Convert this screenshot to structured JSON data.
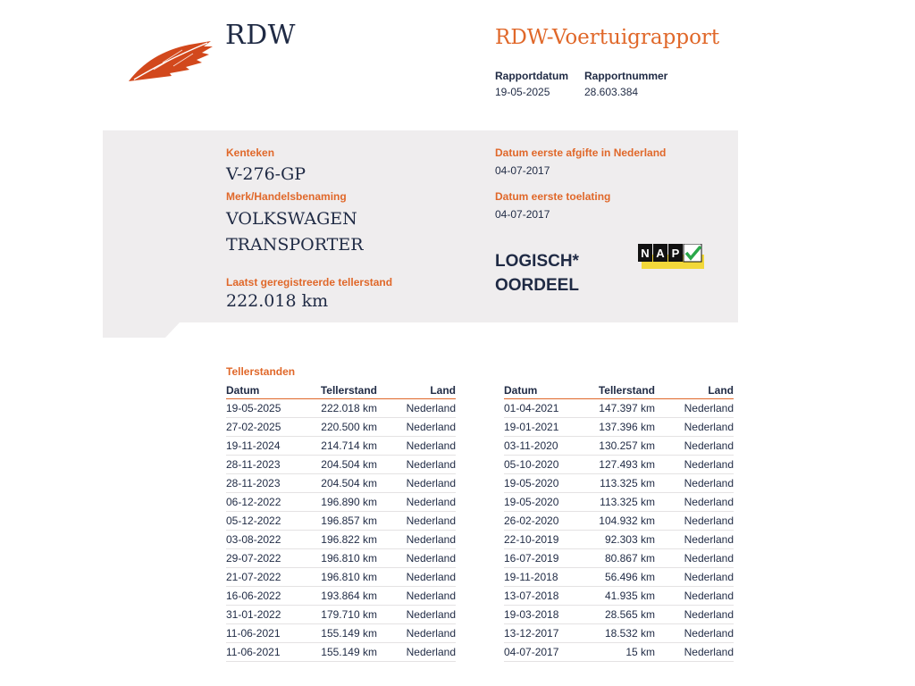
{
  "header": {
    "brand": "RDW",
    "report_title": "RDW-Voertuigrapport",
    "report_date_label": "Rapportdatum",
    "report_date": "19-05-2025",
    "report_number_label": "Rapportnummer",
    "report_number": "28.603.384"
  },
  "vehicle": {
    "plate_label": "Kenteken",
    "plate": "V-276-GP",
    "make_label": "Merk/Handelsbenaming",
    "make": "VOLKSWAGEN",
    "model": "TRANSPORTER",
    "odometer_label": "Laatst geregistreerde tellerstand",
    "odometer": "222.018 km",
    "first_issue_nl_label": "Datum eerste afgifte in Nederland",
    "first_issue_nl": "04-07-2017",
    "first_admission_label": "Datum eerste toelating",
    "first_admission": "04-07-2017",
    "verdict_line1": "LOGISCH*",
    "verdict_line2": "OORDEEL",
    "nap_letters": [
      "N",
      "A",
      "P"
    ]
  },
  "readings": {
    "section_title": "Tellerstanden",
    "columns": [
      "Datum",
      "Tellerstand",
      "Land"
    ],
    "left": [
      [
        "19-05-2025",
        "222.018 km",
        "Nederland"
      ],
      [
        "27-02-2025",
        "220.500 km",
        "Nederland"
      ],
      [
        "19-11-2024",
        "214.714 km",
        "Nederland"
      ],
      [
        "28-11-2023",
        "204.504 km",
        "Nederland"
      ],
      [
        "28-11-2023",
        "204.504 km",
        "Nederland"
      ],
      [
        "06-12-2022",
        "196.890 km",
        "Nederland"
      ],
      [
        "05-12-2022",
        "196.857 km",
        "Nederland"
      ],
      [
        "03-08-2022",
        "196.822 km",
        "Nederland"
      ],
      [
        "29-07-2022",
        "196.810 km",
        "Nederland"
      ],
      [
        "21-07-2022",
        "196.810 km",
        "Nederland"
      ],
      [
        "16-06-2022",
        "193.864 km",
        "Nederland"
      ],
      [
        "31-01-2022",
        "179.710 km",
        "Nederland"
      ],
      [
        "11-06-2021",
        "155.149 km",
        "Nederland"
      ],
      [
        "11-06-2021",
        "155.149 km",
        "Nederland"
      ]
    ],
    "right": [
      [
        "01-04-2021",
        "147.397 km",
        "Nederland"
      ],
      [
        "19-01-2021",
        "137.396 km",
        "Nederland"
      ],
      [
        "03-11-2020",
        "130.257 km",
        "Nederland"
      ],
      [
        "05-10-2020",
        "127.493 km",
        "Nederland"
      ],
      [
        "19-05-2020",
        "113.325 km",
        "Nederland"
      ],
      [
        "19-05-2020",
        "113.325 km",
        "Nederland"
      ],
      [
        "26-02-2020",
        "104.932 km",
        "Nederland"
      ],
      [
        "22-10-2019",
        "92.303 km",
        "Nederland"
      ],
      [
        "16-07-2019",
        "80.867 km",
        "Nederland"
      ],
      [
        "19-11-2018",
        "56.496 km",
        "Nederland"
      ],
      [
        "13-07-2018",
        "41.935 km",
        "Nederland"
      ],
      [
        "19-03-2018",
        "28.565 km",
        "Nederland"
      ],
      [
        "13-12-2017",
        "18.532 km",
        "Nederland"
      ],
      [
        "04-07-2017",
        "15 km",
        "Nederland"
      ]
    ]
  },
  "colors": {
    "accent": "#e0682a",
    "text": "#1f2a44",
    "panel": "#efedee",
    "nap_yellow": "#f2d83a",
    "nap_check": "#2aa84a"
  },
  "icons": [
    "rdw-feather-logo-icon",
    "nap-checkmark-icon"
  ]
}
